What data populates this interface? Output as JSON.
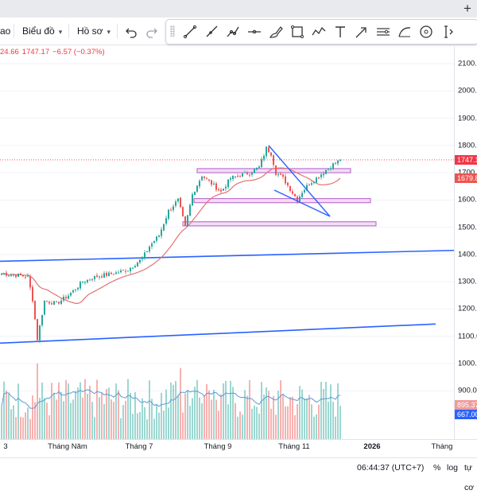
{
  "window": {
    "new_tab_symbol": "+"
  },
  "toolbar": {
    "left_partial_label": "ao",
    "chart_type_label": "Biểu đồ",
    "templates_label": "Hồ sơ",
    "undo_icon": "undo-icon",
    "redo_icon": "redo-icon"
  },
  "drawing_tools": [
    "trend-line-icon",
    "ray-icon",
    "info-line-icon",
    "horizontal-ray-icon",
    "brush-icon",
    "rectangle-icon",
    "path-icon",
    "text-icon",
    "arrow-marker-icon",
    "parallel-channel-icon",
    "arc-icon",
    "circle-icon",
    "measure-icon"
  ],
  "legend": {
    "prefix": "24.66",
    "close": "1747.17",
    "change": "−6.57 (−0.37%)",
    "color": "#f23645"
  },
  "price_axis": {
    "labels": [
      "2100.00",
      "2000.00",
      "1900.00",
      "1800.00",
      "1700.00",
      "1600.00",
      "1500.00",
      "1400.00",
      "1300.00",
      "1200.00",
      "1100.00",
      "1000.00",
      "900.00"
    ],
    "last_price_tag": "1747.17",
    "ma_tag": "1679.88",
    "volume_tag": "895.37",
    "volume_ma_tag": "667.00"
  },
  "time_axis": {
    "labels": [
      {
        "text": "3",
        "bold": false
      },
      {
        "text": "Tháng Năm",
        "bold": false
      },
      {
        "text": "Tháng 7",
        "bold": false
      },
      {
        "text": "Tháng 9",
        "bold": false
      },
      {
        "text": "Tháng 11",
        "bold": false
      },
      {
        "text": "2026",
        "bold": true
      },
      {
        "text": "Tháng",
        "bold": false
      }
    ]
  },
  "bottom_bar": {
    "clock": "06:44:37 (UTC+7)",
    "percent_label": "%",
    "log_label": "log",
    "auto_label": "tự cơ"
  },
  "colors": {
    "up": "#26a69a",
    "down": "#ef5350",
    "trend": "#2962ff",
    "ma": "#e57373",
    "zone_fill": "#f3dcf7",
    "zone_stroke": "#b35cc5",
    "last_price": "#f23645"
  },
  "chart_data": {
    "type": "candlestick",
    "symbol_series": "index",
    "price_range": [
      900,
      2150
    ],
    "time_labels": [
      "3",
      "Tháng Năm",
      "Tháng 7",
      "Tháng 9",
      "Tháng 11",
      "2026",
      "Tháng"
    ],
    "anchors": [
      [
        0,
        1330
      ],
      [
        6,
        1325
      ],
      [
        11,
        1318
      ],
      [
        13,
        1235
      ],
      [
        15,
        1090
      ],
      [
        18,
        1230
      ],
      [
        23,
        1220
      ],
      [
        28,
        1250
      ],
      [
        34,
        1300
      ],
      [
        40,
        1320
      ],
      [
        47,
        1330
      ],
      [
        53,
        1345
      ],
      [
        59,
        1385
      ],
      [
        62,
        1430
      ],
      [
        66,
        1470
      ],
      [
        70,
        1560
      ],
      [
        74,
        1600
      ],
      [
        77,
        1500
      ],
      [
        80,
        1620
      ],
      [
        84,
        1690
      ],
      [
        88,
        1660
      ],
      [
        92,
        1630
      ],
      [
        96,
        1680
      ],
      [
        100,
        1690
      ],
      [
        104,
        1700
      ],
      [
        108,
        1720
      ],
      [
        111,
        1790
      ],
      [
        113,
        1770
      ],
      [
        115,
        1700
      ],
      [
        118,
        1680
      ],
      [
        121,
        1640
      ],
      [
        124,
        1600
      ],
      [
        126,
        1630
      ],
      [
        129,
        1660
      ],
      [
        132,
        1680
      ],
      [
        136,
        1710
      ],
      [
        139,
        1730
      ],
      [
        142,
        1747
      ]
    ],
    "last_close": 1747.17,
    "ma_last": 1679.88,
    "support_resistance_zones": [
      {
        "from": 1700,
        "to": 1715
      },
      {
        "from": 1590,
        "to": 1605
      },
      {
        "from": 1505,
        "to": 1520
      }
    ],
    "trend_lines": [
      {
        "name": "upper-channel",
        "from": 1375,
        "to": 1415
      },
      {
        "name": "lower-channel",
        "from": 1075,
        "to": 1145
      }
    ],
    "volume_axis": {
      "last": 895.37,
      "ma": 667.0
    }
  }
}
